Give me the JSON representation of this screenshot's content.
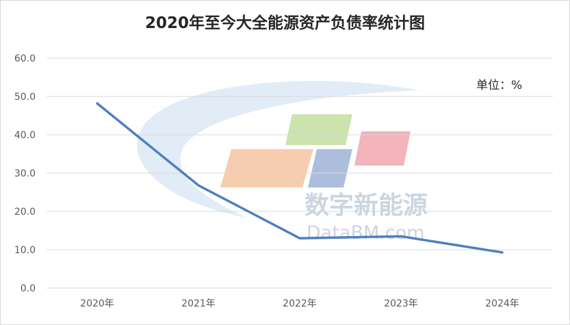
{
  "chart_data": {
    "type": "line",
    "title": "2020年至今大全能源资产负债率统计图",
    "unit_label": "单位：%",
    "categories": [
      "2020年",
      "2021年",
      "2022年",
      "2023年",
      "2024年"
    ],
    "series": [
      {
        "values": [
          48.2,
          26.8,
          13.0,
          13.5,
          9.3
        ],
        "color": "#4f7fbf"
      }
    ],
    "y_ticks": [
      "0.0",
      "10.0",
      "20.0",
      "30.0",
      "40.0",
      "50.0",
      "60.0"
    ],
    "ylim": [
      0,
      60
    ],
    "grid": true,
    "legend": "none"
  },
  "watermark": {
    "cn": "数字新能源",
    "en": "DataBM.com"
  }
}
